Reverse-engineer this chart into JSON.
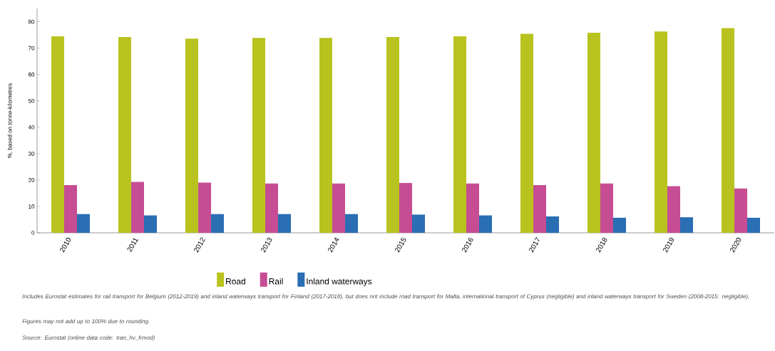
{
  "chart_data": {
    "type": "bar",
    "ylabel": "%, based on tonne-kilometres",
    "categories": [
      "2010",
      "2011",
      "2012",
      "2013",
      "2014",
      "2015",
      "2016",
      "2017",
      "2018",
      "2019",
      "2020"
    ],
    "series": [
      {
        "name": "Road",
        "color": "#b9c31f",
        "values": [
          74.5,
          74.2,
          73.6,
          73.9,
          73.9,
          74.2,
          74.5,
          75.4,
          75.8,
          76.3,
          77.6
        ]
      },
      {
        "name": "Rail",
        "color": "#c64d93",
        "values": [
          18.1,
          19.3,
          19.0,
          18.7,
          18.7,
          18.9,
          18.7,
          18.1,
          18.7,
          17.7,
          16.8
        ]
      },
      {
        "name": "Inland waterways",
        "color": "#2a6eb4",
        "values": [
          7.1,
          6.6,
          7.1,
          7.1,
          7.1,
          6.9,
          6.6,
          6.2,
          5.7,
          5.9,
          5.7
        ]
      }
    ],
    "ylim": [
      0,
      85
    ],
    "yticks": [
      0,
      10,
      20,
      30,
      40,
      50,
      60,
      70,
      80
    ],
    "legend": "bottom",
    "annotations": [
      "Includes Eurostat estimates for rail transport for Belgium (2012-2019) and inland waterways transport for Finland (2017-2018), but does not include road transport for Malta, international transport of Cyprus (negligible) and inland waterways transport for Sweden (2008-2015: negligible).",
      "Figures may not add up to 100% due to rounding.",
      "Source: Eurostat (online data code: tran_hv_frmod)"
    ]
  }
}
